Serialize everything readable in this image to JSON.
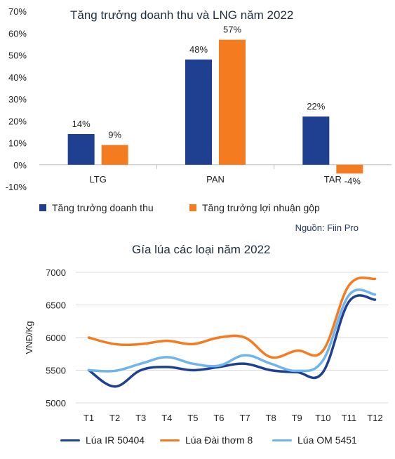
{
  "source": "Nguồn: Fiin Pro",
  "chart_data": [
    {
      "type": "bar",
      "title": "Tăng trưởng doanh thu và LNG năm 2022",
      "categories": [
        "LTG",
        "PAN",
        "TAR"
      ],
      "ylim": [
        -10,
        70
      ],
      "yticks": [
        "70%",
        "60%",
        "50%",
        "40%",
        "30%",
        "20%",
        "10%",
        "0%",
        "-10%"
      ],
      "ytick_values": [
        70,
        60,
        50,
        40,
        30,
        20,
        10,
        0,
        -10
      ],
      "series": [
        {
          "name": "Tăng trưởng doanh thu",
          "values": [
            14,
            48,
            22
          ],
          "labels": [
            "14%",
            "48%",
            "22%"
          ],
          "color": "#1f3f91"
        },
        {
          "name": "Tăng trưởng lợi nhuận gộp",
          "values": [
            9,
            57,
            -4
          ],
          "labels": [
            "9%",
            "57%",
            "-4%"
          ],
          "color": "#f47b20"
        }
      ],
      "legend": "bottom",
      "grid": false
    },
    {
      "type": "line",
      "title": "Gía lúa các loại năm 2022",
      "ylabel": "VNĐ/Kg",
      "categories": [
        "T1",
        "T2",
        "T3",
        "T4",
        "T5",
        "T6",
        "T7",
        "T8",
        "T9",
        "T10",
        "T11",
        "T12"
      ],
      "ylim": [
        5000,
        7000
      ],
      "yticks": [
        "7000",
        "6500",
        "6000",
        "5500",
        "5000"
      ],
      "ytick_values": [
        7000,
        6500,
        6000,
        5500,
        5000
      ],
      "series": [
        {
          "name": "Lúa IR 50404",
          "values": [
            5500,
            5250,
            5500,
            5550,
            5500,
            5550,
            5600,
            5500,
            5470,
            5470,
            6550,
            6580
          ],
          "color": "#1f3f91"
        },
        {
          "name": "Lúa Đài thơm 8",
          "values": [
            6000,
            5900,
            5900,
            5950,
            5900,
            6000,
            6000,
            5700,
            5800,
            5800,
            6800,
            6900
          ],
          "color": "#f47b20"
        },
        {
          "name": "Lúa OM 5451",
          "values": [
            5500,
            5490,
            5600,
            5700,
            5600,
            5570,
            5730,
            5600,
            5490,
            5650,
            6650,
            6660
          ],
          "color": "#6fb4ea"
        }
      ],
      "legend": "bottom",
      "grid": true
    }
  ]
}
